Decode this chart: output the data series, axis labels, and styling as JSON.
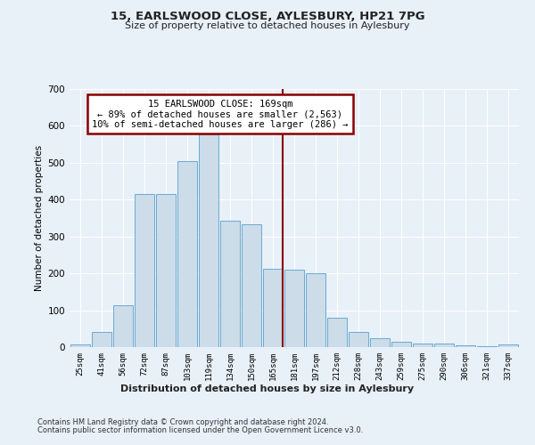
{
  "title": "15, EARLSWOOD CLOSE, AYLESBURY, HP21 7PG",
  "subtitle": "Size of property relative to detached houses in Aylesbury",
  "xlabel": "Distribution of detached houses by size in Aylesbury",
  "ylabel": "Number of detached properties",
  "bar_heights": [
    8,
    40,
    113,
    415,
    415,
    505,
    578,
    343,
    332,
    212,
    210,
    200,
    80,
    42,
    25,
    15,
    10,
    10,
    5,
    2,
    7
  ],
  "categories": [
    "25sqm",
    "41sqm",
    "56sqm",
    "72sqm",
    "87sqm",
    "103sqm",
    "119sqm",
    "134sqm",
    "150sqm",
    "165sqm",
    "181sqm",
    "197sqm",
    "212sqm",
    "228sqm",
    "243sqm",
    "259sqm",
    "275sqm",
    "290sqm",
    "306sqm",
    "321sqm",
    "337sqm"
  ],
  "bar_color": "#ccdce8",
  "bar_edgecolor": "#6aaad4",
  "vline_color": "#8b0000",
  "annotation_text": "15 EARLSWOOD CLOSE: 169sqm\n← 89% of detached houses are smaller (2,563)\n10% of semi-detached houses are larger (286) →",
  "annotation_box_edgecolor": "#8b0000",
  "ylim": [
    0,
    700
  ],
  "yticks": [
    0,
    100,
    200,
    300,
    400,
    500,
    600,
    700
  ],
  "bg_color": "#e8f0f8",
  "grid_color": "#ffffff",
  "footnote1": "Contains HM Land Registry data © Crown copyright and database right 2024.",
  "footnote2": "Contains public sector information licensed under the Open Government Licence v3.0."
}
